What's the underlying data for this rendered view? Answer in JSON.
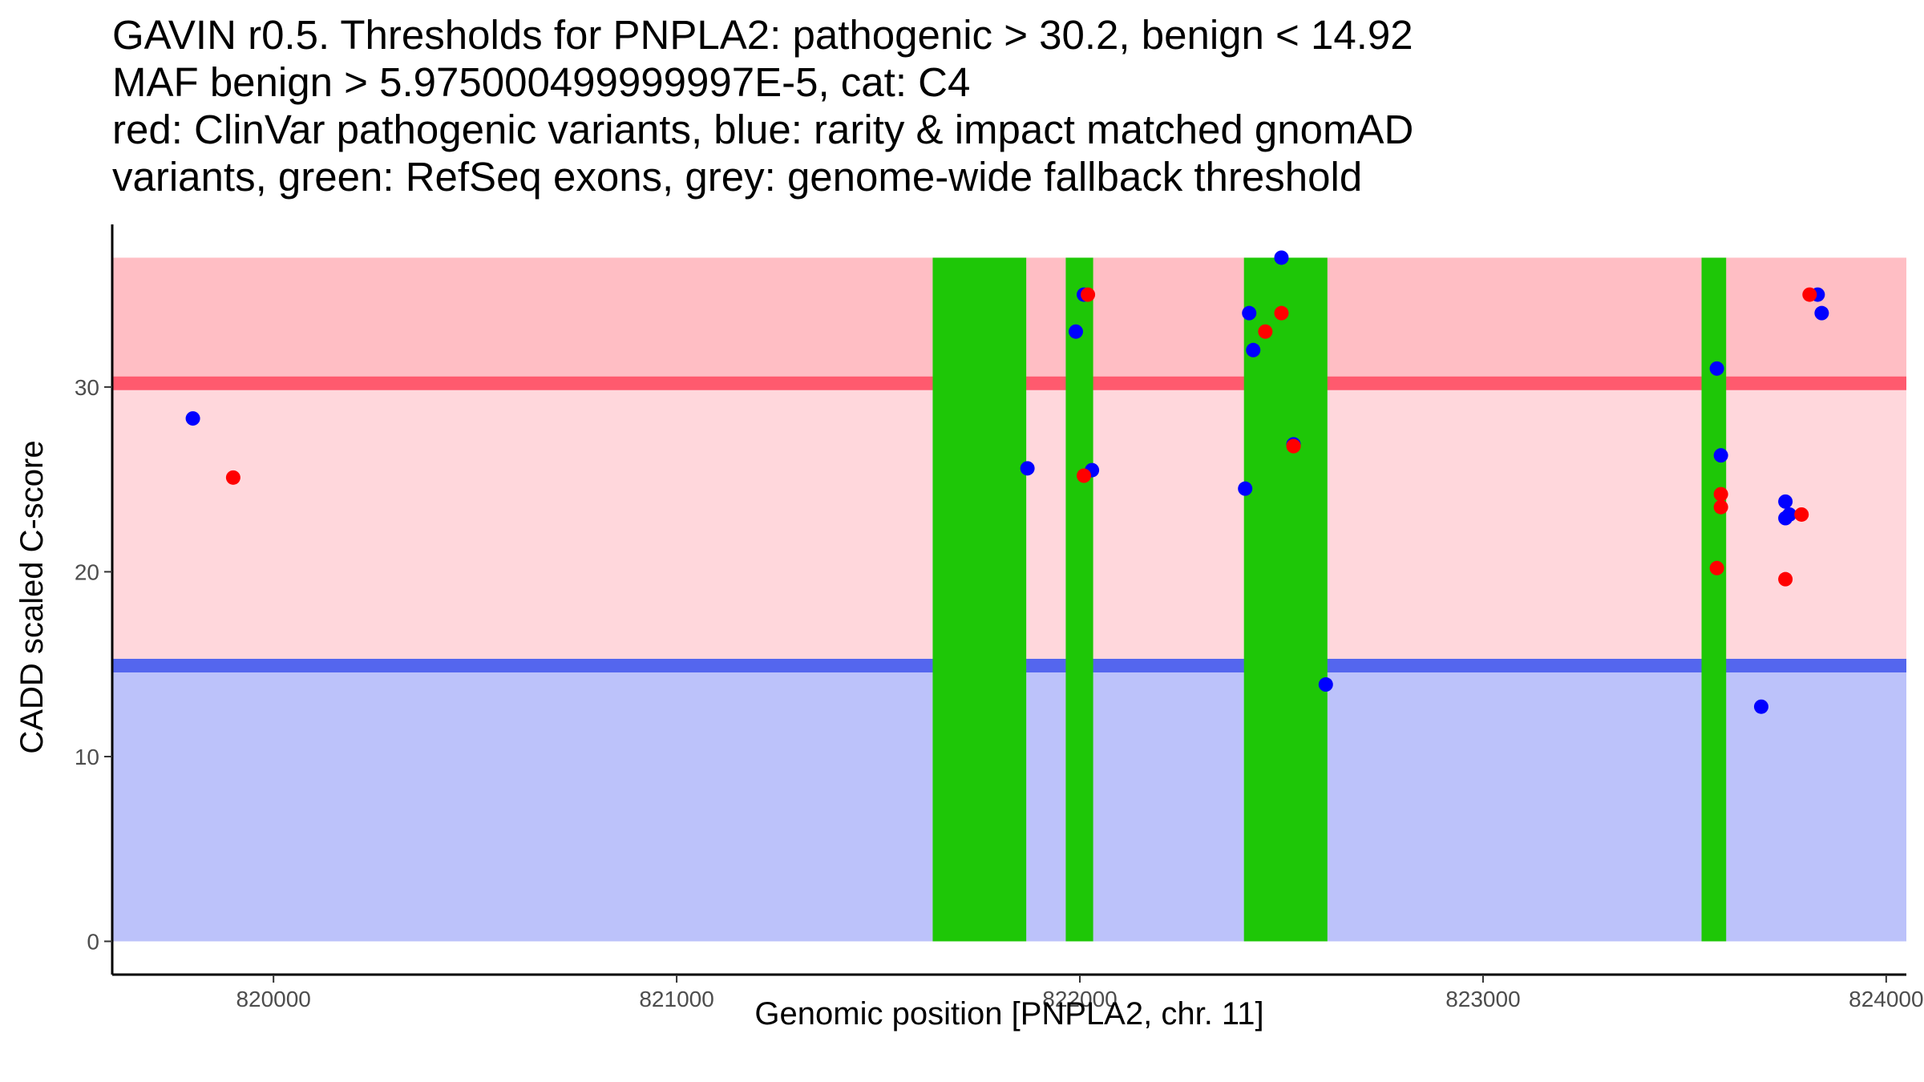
{
  "chart_data": {
    "type": "scatter",
    "title_lines": [
      "GAVIN r0.5. Thresholds for PNPLA2: pathogenic > 30.2, benign < 14.92",
      "MAF benign > 5.975000499999997E-5, cat: C4",
      "red: ClinVar pathogenic variants, blue: rarity & impact matched gnomAD",
      "variants, green: RefSeq exons, grey: genome-wide fallback threshold"
    ],
    "xlabel": "Genomic position [PNPLA2, chr. 11]",
    "ylabel": "CADD scaled C-score",
    "xlim": [
      819600,
      824050
    ],
    "ylim": [
      -1.8,
      38.8
    ],
    "x_ticks": [
      820000,
      821000,
      822000,
      823000,
      824000
    ],
    "y_ticks": [
      0,
      10,
      20,
      30
    ],
    "colors": {
      "pathogenic_zone": "#ffbec4",
      "uncertain_zone": "#ffd7dc",
      "benign_zone": "#bcc2fa",
      "pathogenic_threshold_line": "#ff5a6e",
      "benign_threshold_line": "#5466ee",
      "exon": "#1ec707",
      "clinvar_point": "#ff0000",
      "gnomad_point": "#0000ff"
    },
    "zones": {
      "benign_top": 14.92,
      "pathogenic_bottom": 30.2,
      "top": 37
    },
    "thresholds": {
      "pathogenic": 30.2,
      "benign": 14.92
    },
    "exons": [
      {
        "start": 821635,
        "end": 821867
      },
      {
        "start": 821965,
        "end": 822033
      },
      {
        "start": 822407,
        "end": 822614
      },
      {
        "start": 823542,
        "end": 823603
      }
    ],
    "series": [
      {
        "name": "ClinVar pathogenic variants",
        "color": "#ff0000",
        "points": [
          [
            819900,
            25.1
          ],
          [
            822010,
            25.2
          ],
          [
            822020,
            35.0
          ],
          [
            822460,
            33.0
          ],
          [
            822500,
            34.0
          ],
          [
            822530,
            26.8
          ],
          [
            823580,
            20.2
          ],
          [
            823590,
            24.2
          ],
          [
            823590,
            23.5
          ],
          [
            823750,
            19.6
          ],
          [
            823790,
            23.1
          ],
          [
            823810,
            35.0
          ]
        ]
      },
      {
        "name": "rarity & impact matched gnomAD variants",
        "color": "#0000ff",
        "points": [
          [
            819800,
            28.3
          ],
          [
            821870,
            25.6
          ],
          [
            821990,
            33.0
          ],
          [
            822010,
            35.0
          ],
          [
            822030,
            25.5
          ],
          [
            822410,
            24.5
          ],
          [
            822420,
            34.0
          ],
          [
            822430,
            32.0
          ],
          [
            822500,
            37.0
          ],
          [
            822530,
            26.9
          ],
          [
            822610,
            13.9
          ],
          [
            823580,
            31.0
          ],
          [
            823590,
            26.3
          ],
          [
            823690,
            12.7
          ],
          [
            823750,
            22.9
          ],
          [
            823750,
            23.8
          ],
          [
            823760,
            23.1
          ],
          [
            823830,
            35.0
          ],
          [
            823840,
            34.0
          ]
        ]
      }
    ]
  }
}
